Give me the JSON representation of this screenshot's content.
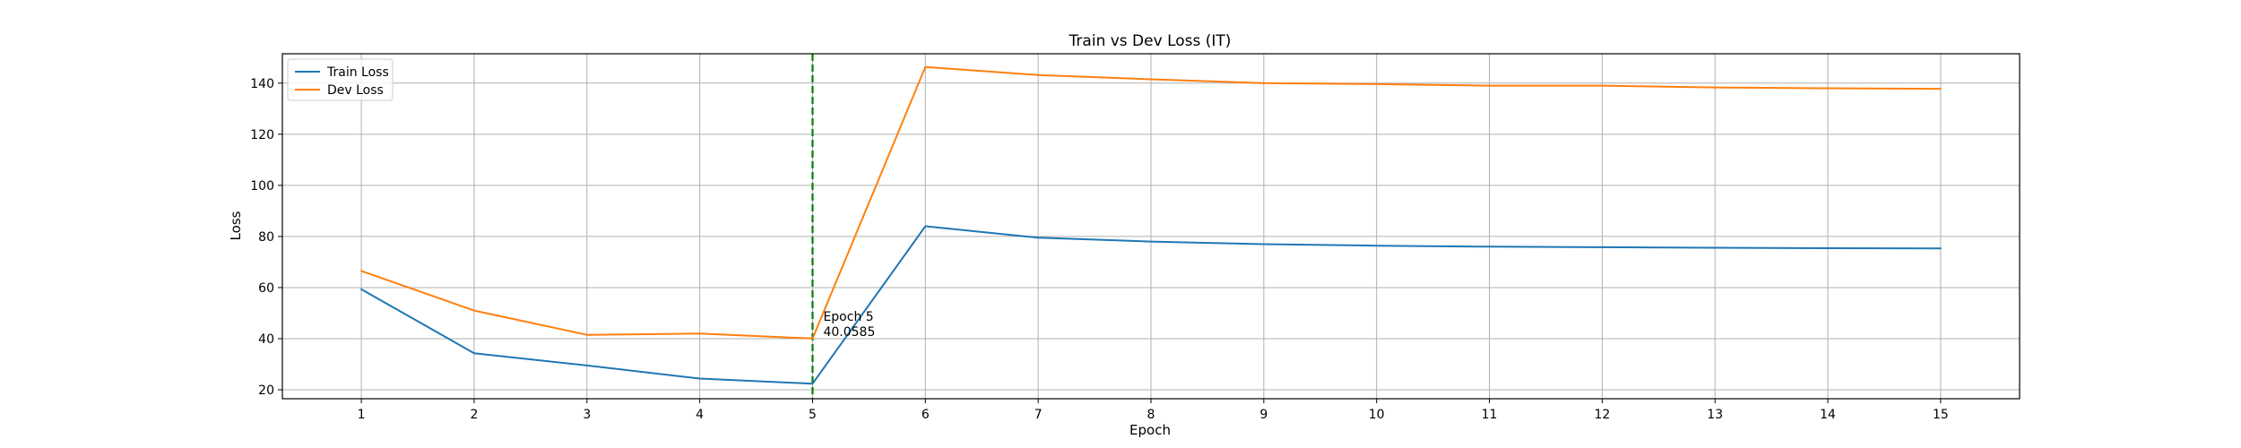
{
  "chart_data": {
    "type": "line",
    "title": "Train vs Dev Loss (IT)",
    "xlabel": "Epoch",
    "ylabel": "Loss",
    "x": [
      1,
      2,
      3,
      4,
      5,
      6,
      7,
      8,
      9,
      10,
      11,
      12,
      13,
      14,
      15
    ],
    "xlim": [
      0.3,
      15.7
    ],
    "ylim": [
      16.5,
      151.5
    ],
    "xticks": [
      1,
      2,
      3,
      4,
      5,
      6,
      7,
      8,
      9,
      10,
      11,
      12,
      13,
      14,
      15
    ],
    "yticks": [
      20,
      40,
      60,
      80,
      100,
      120,
      140
    ],
    "grid": true,
    "legend_position": "top-left",
    "series": [
      {
        "name": "Train Loss",
        "color": "#1f77b4",
        "values": [
          59.3,
          34.3,
          29.5,
          24.4,
          22.4,
          84.0,
          79.5,
          78.0,
          77.0,
          76.4,
          76.0,
          75.8,
          75.6,
          75.4,
          75.3
        ]
      },
      {
        "name": "Dev Loss",
        "color": "#ff7f0e",
        "values": [
          66.5,
          51.0,
          41.5,
          42.0,
          40.0585,
          146.3,
          143.2,
          141.5,
          140.0,
          139.6,
          139.0,
          139.0,
          138.3,
          138.0,
          137.8
        ]
      }
    ],
    "marker_line": {
      "x": 5,
      "color": "#008000",
      "style": "dashed"
    },
    "annotation": {
      "line1": "Epoch 5",
      "line2": "40.0585",
      "x": 5,
      "y": 40.0585
    }
  }
}
